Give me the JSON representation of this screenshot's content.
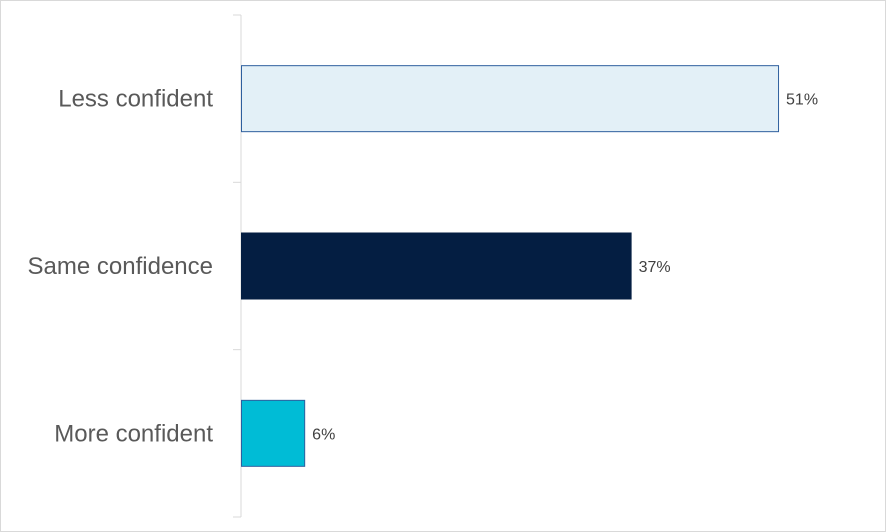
{
  "chart_data": {
    "type": "bar",
    "orientation": "horizontal",
    "categories": [
      "Less confident",
      "Same confidence",
      "More confident"
    ],
    "values": [
      51,
      37,
      6
    ],
    "value_labels": [
      "51%",
      "37%",
      "6%"
    ],
    "unit": "%",
    "colors": [
      "#e3f0f7",
      "#041e42",
      "#00bcd6"
    ],
    "border_colors": [
      "#2e5f9e",
      "#041e42",
      "#2e5f9e"
    ],
    "axis_color": "#d9d9d9",
    "xlim": [
      0,
      60
    ],
    "grid": false,
    "legend": "none",
    "title": "",
    "xlabel": "",
    "ylabel": ""
  }
}
